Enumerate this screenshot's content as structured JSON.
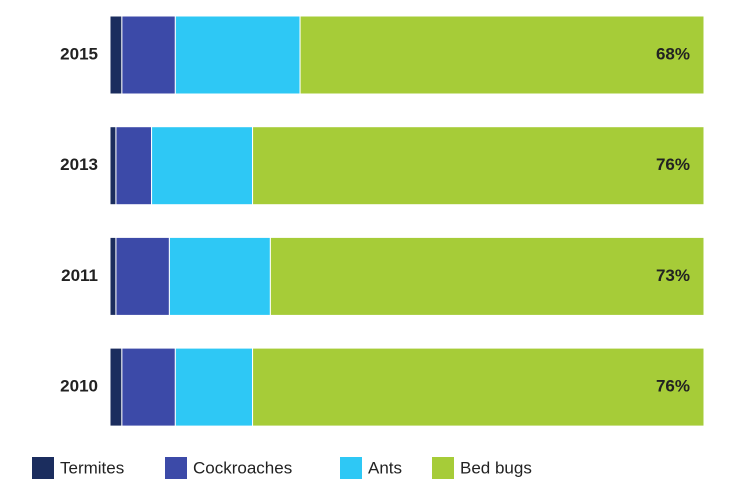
{
  "chart_data": {
    "type": "stacked-bar-horizontal",
    "categories": [
      "2015",
      "2013",
      "2011",
      "2010"
    ],
    "xlim": [
      0,
      100
    ],
    "series": [
      {
        "name": "Termites",
        "color": "#1b2d5e",
        "values": [
          2,
          1,
          1,
          2
        ]
      },
      {
        "name": "Cockroaches",
        "color": "#3c4aa8",
        "values": [
          9,
          6,
          9,
          9
        ]
      },
      {
        "name": "Ants",
        "color": "#2ec8f5",
        "values": [
          21,
          17,
          17,
          13
        ]
      },
      {
        "name": "Bed bugs",
        "color": "#a6cc38",
        "values": [
          68,
          76,
          73,
          76
        ],
        "value_labels": [
          "68%",
          "76%",
          "73%",
          "76%"
        ]
      }
    ]
  }
}
